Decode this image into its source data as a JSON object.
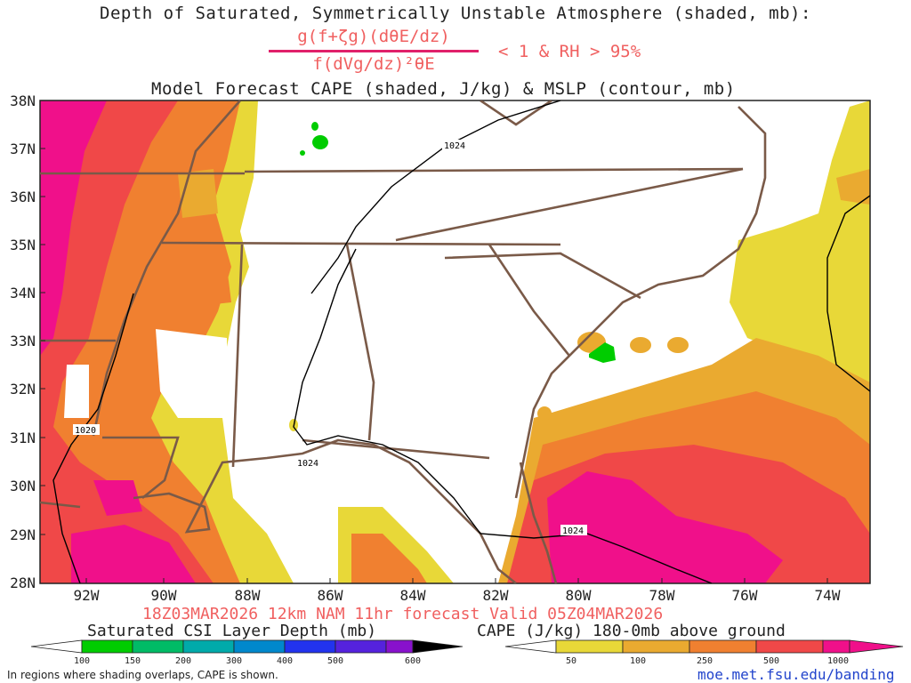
{
  "title": {
    "line1": "Depth of Saturated, Symmetrically Unstable Atmosphere (shaded, mb):",
    "numerator": "g(f+ζg)(dθE/dz)",
    "denominator": "f(dVg/dz)²θE",
    "condition": "< 1 & RH > 95%",
    "line3": "Model Forecast CAPE (shaded, J/kg) & MSLP (contour, mb)"
  },
  "axes": {
    "lat_labels": [
      "38N",
      "37N",
      "36N",
      "35N",
      "34N",
      "33N",
      "32N",
      "31N",
      "30N",
      "29N",
      "28N"
    ],
    "lon_labels": [
      "92W",
      "90W",
      "88W",
      "86W",
      "84W",
      "82W",
      "80W",
      "78W",
      "76W",
      "74W"
    ]
  },
  "contours": {
    "labels": [
      "1024",
      "1020",
      "1024",
      "1024"
    ]
  },
  "forecast_line": "18Z03MAR2026 12km NAM 11hr forecast Valid 05Z04MAR2026",
  "legend_csi": {
    "title": "Saturated CSI Layer Depth (mb)",
    "ticks": [
      "100",
      "150",
      "200",
      "300",
      "400",
      "500",
      "600"
    ],
    "colors": [
      "#00cc00",
      "#00bb66",
      "#00aaaa",
      "#0088cc",
      "#2233ee",
      "#5522dd",
      "#8811cc",
      "#000000"
    ]
  },
  "legend_cape": {
    "title": "CAPE (J/kg) 180-0mb above ground",
    "ticks": [
      "50",
      "100",
      "250",
      "500",
      "1000"
    ],
    "colors": [
      "#e8d838",
      "#eaaa30",
      "#f08030",
      "#f04848",
      "#f0108a"
    ]
  },
  "footer_note": "In regions where shading overlaps, CAPE is shown.",
  "url": "moe.met.fsu.edu/banding"
}
